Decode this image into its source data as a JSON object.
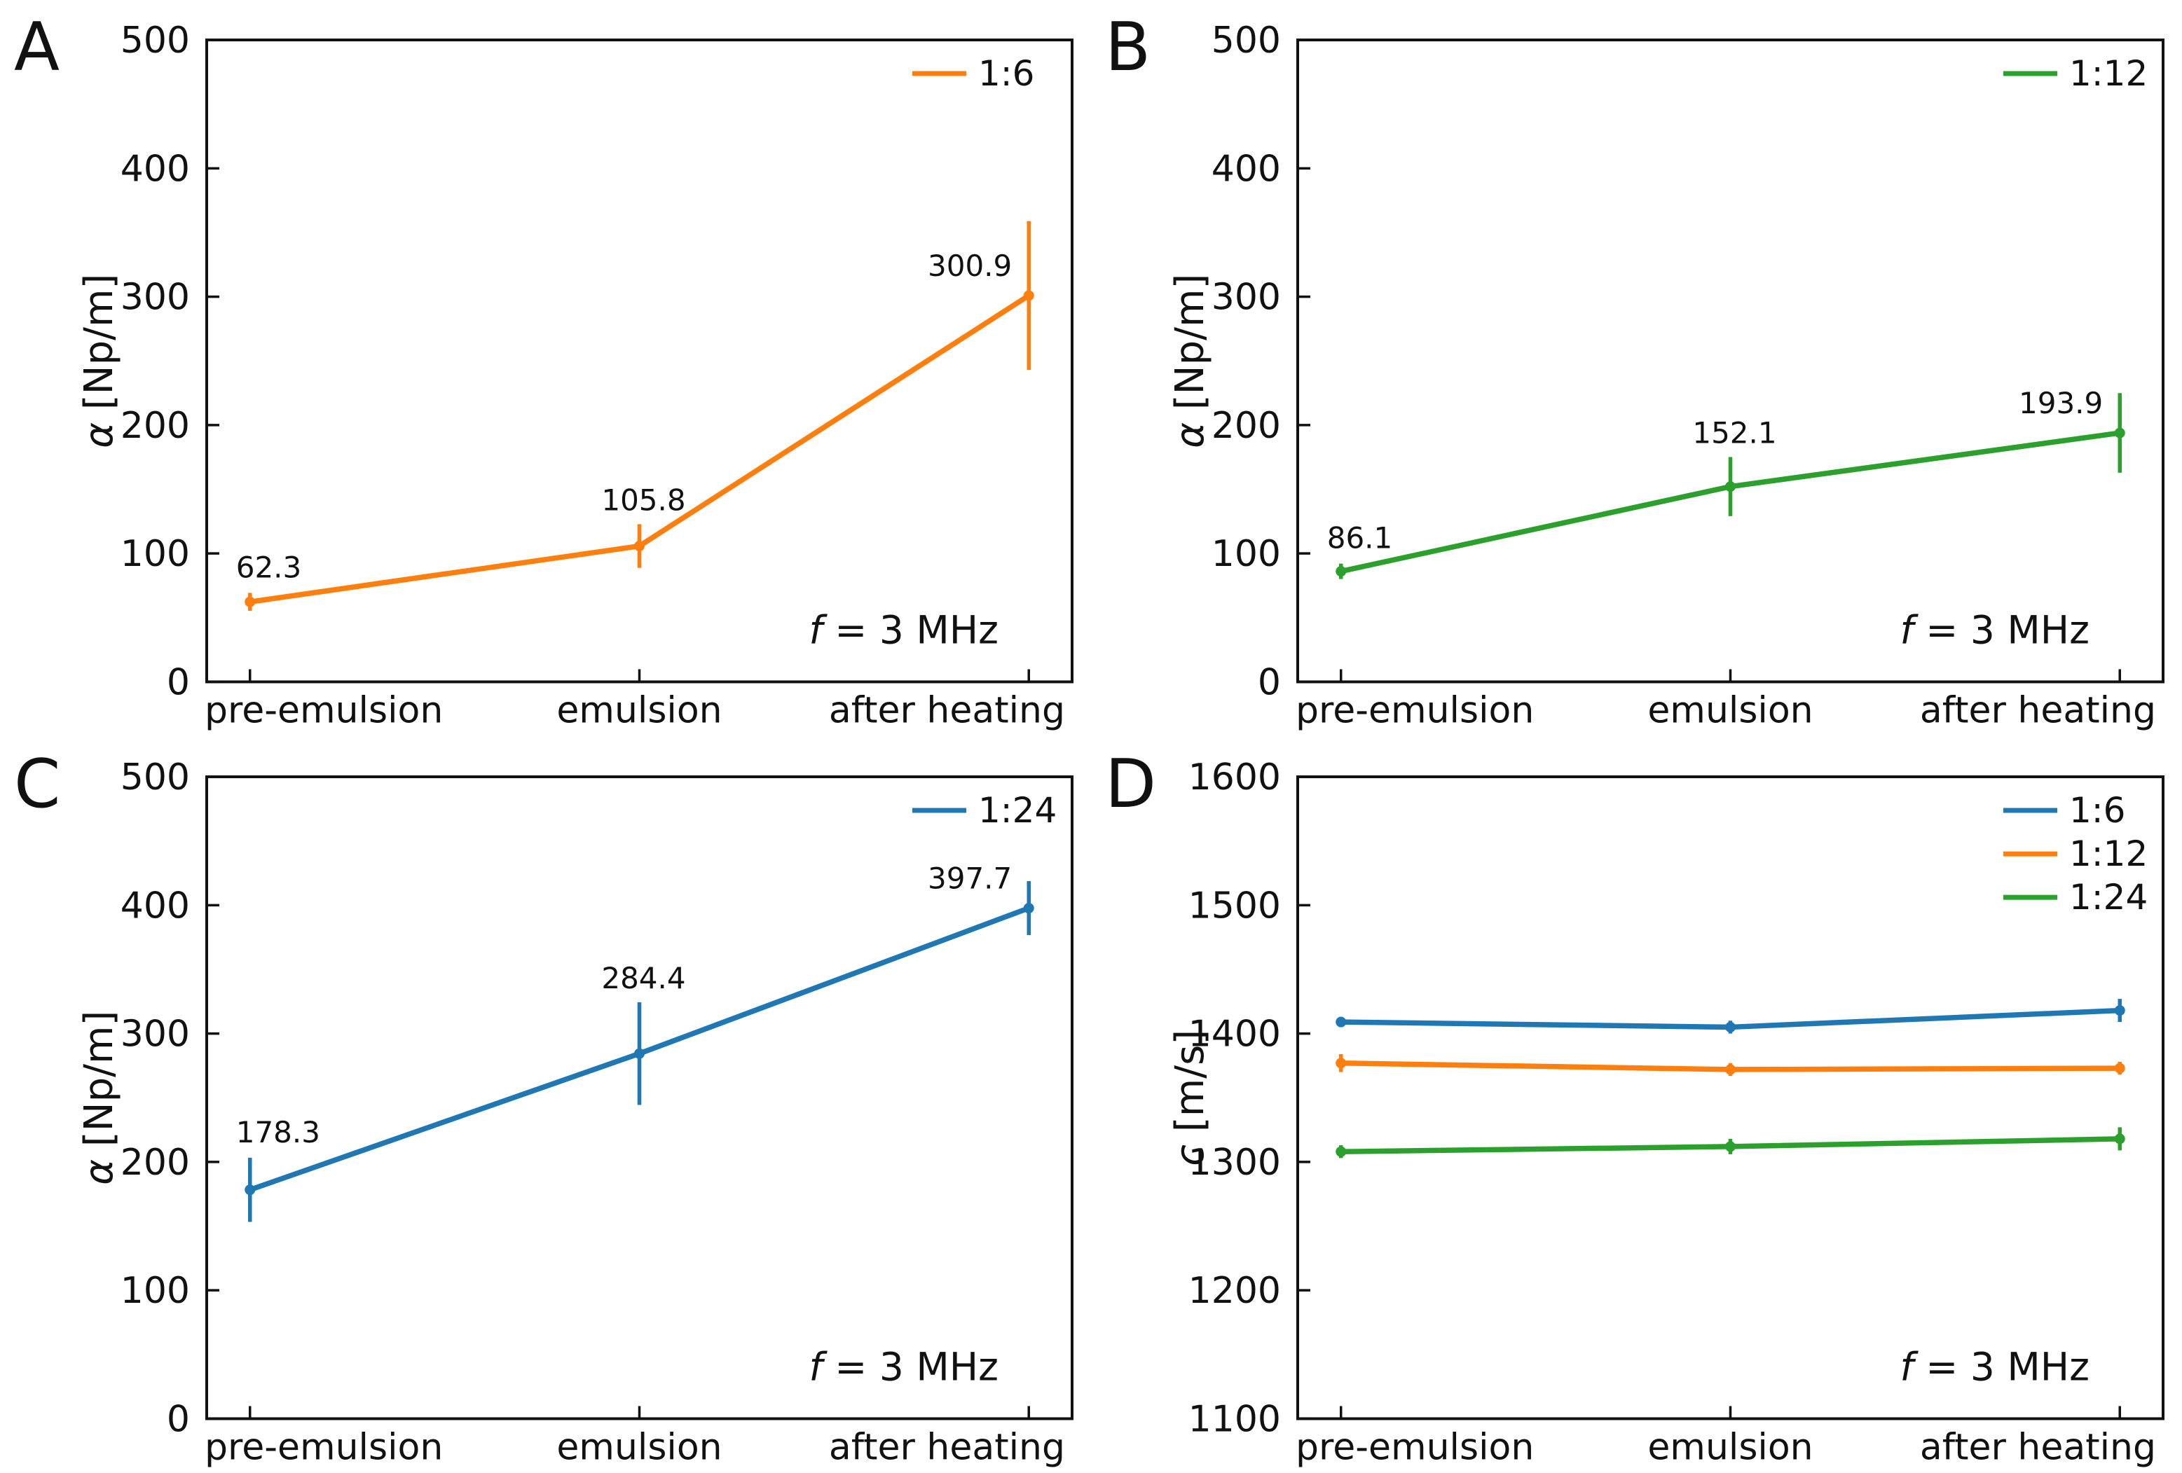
{
  "figure": {
    "background": "#ffffff",
    "axis_color": "#111111",
    "rows": 2,
    "cols": 2
  },
  "chart_data": [
    {
      "panel_label": "A",
      "type": "line",
      "categories": [
        "pre-emulsion",
        "emulsion",
        "after heating"
      ],
      "xlabel": "",
      "ylabel_symbol": "α",
      "ylabel_unit": " [Np/m]",
      "ylim": [
        0,
        500
      ],
      "yticks": [
        0,
        100,
        200,
        300,
        400,
        500
      ],
      "ytick_labels": [
        "0",
        "100",
        "200",
        "300",
        "400",
        "500"
      ],
      "grid": false,
      "legend_position": "top-right",
      "annotation_symbol": "f",
      "annotation_rest": " = 3 MHz",
      "series": [
        {
          "name": "1:6",
          "color": "#ff7f0e",
          "values": [
            62.3,
            105.8,
            300.9
          ],
          "errors": [
            7,
            17,
            58
          ],
          "data_labels": [
            "62.3",
            "105.8",
            "300.9"
          ]
        }
      ]
    },
    {
      "panel_label": "B",
      "type": "line",
      "categories": [
        "pre-emulsion",
        "emulsion",
        "after heating"
      ],
      "xlabel": "",
      "ylabel_symbol": "α",
      "ylabel_unit": " [Np/m]",
      "ylim": [
        0,
        500
      ],
      "yticks": [
        0,
        100,
        200,
        300,
        400,
        500
      ],
      "ytick_labels": [
        "0",
        "100",
        "200",
        "300",
        "400",
        "500"
      ],
      "grid": false,
      "legend_position": "top-right",
      "annotation_symbol": "f",
      "annotation_rest": " = 3 MHz",
      "series": [
        {
          "name": "1:12",
          "color": "#2ca02c",
          "values": [
            86.1,
            152.1,
            193.9
          ],
          "errors": [
            6,
            23,
            31
          ],
          "data_labels": [
            "86.1",
            "152.1",
            "193.9"
          ]
        }
      ]
    },
    {
      "panel_label": "C",
      "type": "line",
      "categories": [
        "pre-emulsion",
        "emulsion",
        "after heating"
      ],
      "xlabel": "",
      "ylabel_symbol": "α",
      "ylabel_unit": " [Np/m]",
      "ylim": [
        0,
        500
      ],
      "yticks": [
        0,
        100,
        200,
        300,
        400,
        500
      ],
      "ytick_labels": [
        "0",
        "100",
        "200",
        "300",
        "400",
        "500"
      ],
      "grid": false,
      "legend_position": "top-right",
      "annotation_symbol": "f",
      "annotation_rest": " = 3 MHz",
      "series": [
        {
          "name": "1:24",
          "color": "#1f77b4",
          "values": [
            178.3,
            284.4,
            397.7
          ],
          "errors": [
            25,
            40,
            21
          ],
          "data_labels": [
            "178.3",
            "284.4",
            "397.7"
          ]
        }
      ]
    },
    {
      "panel_label": "D",
      "type": "line",
      "categories": [
        "pre-emulsion",
        "emulsion",
        "after heating"
      ],
      "xlabel": "",
      "ylabel_symbol": "c",
      "ylabel_unit": " [m/s]",
      "ylim": [
        1100,
        1600
      ],
      "yticks": [
        1100,
        1200,
        1300,
        1400,
        1500,
        1600
      ],
      "ytick_labels": [
        "1100",
        "1200",
        "1300",
        "1400",
        "1500",
        "1600"
      ],
      "grid": false,
      "legend_position": "top-right",
      "annotation_symbol": "f",
      "annotation_rest": " = 3 MHz",
      "series": [
        {
          "name": "1:6",
          "color": "#1f77b4",
          "values": [
            1409,
            1405,
            1418
          ],
          "errors": [
            4,
            5,
            9
          ]
        },
        {
          "name": "1:12",
          "color": "#ff7f0e",
          "values": [
            1377,
            1372,
            1373
          ],
          "errors": [
            7,
            5,
            5
          ]
        },
        {
          "name": "1:24",
          "color": "#2ca02c",
          "values": [
            1308,
            1312,
            1318
          ],
          "errors": [
            5,
            6,
            9
          ]
        }
      ]
    }
  ]
}
